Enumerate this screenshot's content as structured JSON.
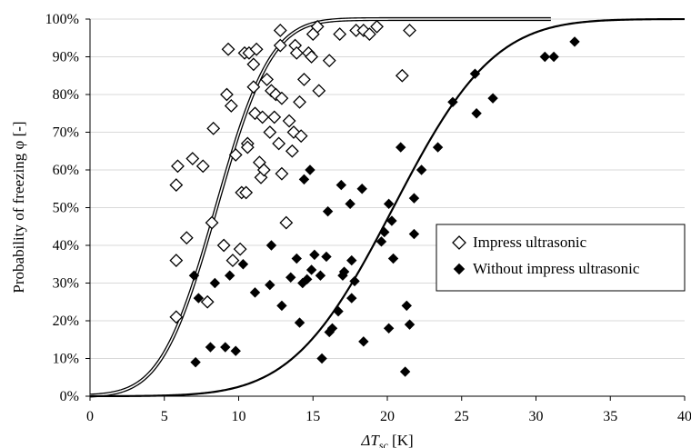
{
  "chart_data": {
    "type": "scatter",
    "title": "",
    "xlabel": "ΔT_sc [K]",
    "ylabel": "Probability of freezing  φ [-]",
    "xlim": [
      0,
      40
    ],
    "ylim": [
      0,
      100
    ],
    "x_ticks": [
      "0",
      "5",
      "10",
      "15",
      "20",
      "25",
      "30",
      "35",
      "40"
    ],
    "y_ticks": [
      "0%",
      "10%",
      "20%",
      "30%",
      "40%",
      "50%",
      "60%",
      "70%",
      "80%",
      "90%",
      "100%"
    ],
    "grid": "horizontal",
    "legend_position": "center-right",
    "series": [
      {
        "name": "Impress ultrasonic",
        "marker": "diamond-open",
        "points": [
          [
            5.8,
            21
          ],
          [
            5.8,
            36
          ],
          [
            5.8,
            56
          ],
          [
            5.9,
            61
          ],
          [
            6.5,
            42
          ],
          [
            6.9,
            63
          ],
          [
            7.6,
            61
          ],
          [
            7.9,
            25
          ],
          [
            8.2,
            46
          ],
          [
            8.3,
            71
          ],
          [
            9,
            40
          ],
          [
            9.2,
            80
          ],
          [
            9.3,
            92
          ],
          [
            9.5,
            77
          ],
          [
            9.6,
            36
          ],
          [
            9.8,
            64
          ],
          [
            10.1,
            39
          ],
          [
            10.2,
            54
          ],
          [
            10.4,
            91
          ],
          [
            10.5,
            54
          ],
          [
            10.6,
            67
          ],
          [
            10.6,
            66
          ],
          [
            10.7,
            91
          ],
          [
            11,
            88
          ],
          [
            11,
            82
          ],
          [
            11.1,
            75
          ],
          [
            11.2,
            92
          ],
          [
            11.4,
            62
          ],
          [
            11.5,
            58
          ],
          [
            11.6,
            74
          ],
          [
            11.7,
            60
          ],
          [
            11.9,
            84
          ],
          [
            12.1,
            70
          ],
          [
            12.2,
            81
          ],
          [
            12.4,
            74
          ],
          [
            12.5,
            80
          ],
          [
            12.7,
            67
          ],
          [
            12.8,
            93
          ],
          [
            12.8,
            97
          ],
          [
            12.9,
            79
          ],
          [
            12.9,
            59
          ],
          [
            13.2,
            46
          ],
          [
            13.4,
            73
          ],
          [
            13.6,
            65
          ],
          [
            13.7,
            70
          ],
          [
            13.8,
            93
          ],
          [
            13.9,
            91
          ],
          [
            14.1,
            78
          ],
          [
            14.2,
            69
          ],
          [
            14.4,
            84
          ],
          [
            14.7,
            91
          ],
          [
            14.9,
            90
          ],
          [
            15,
            96
          ],
          [
            15.3,
            98
          ],
          [
            15.4,
            81
          ],
          [
            16.1,
            89
          ],
          [
            16.8,
            96
          ],
          [
            17.9,
            97
          ],
          [
            18.4,
            97
          ],
          [
            18.8,
            96
          ],
          [
            19.3,
            98
          ],
          [
            21,
            85
          ],
          [
            21.5,
            97
          ]
        ]
      },
      {
        "name": "Without impress ultrasonic",
        "marker": "diamond-filled",
        "points": [
          [
            7,
            32
          ],
          [
            7.1,
            9
          ],
          [
            7.3,
            26
          ],
          [
            8.1,
            13
          ],
          [
            8.4,
            30
          ],
          [
            9.1,
            13
          ],
          [
            9.4,
            32
          ],
          [
            9.8,
            12
          ],
          [
            10.3,
            35
          ],
          [
            11.1,
            27.5
          ],
          [
            12.1,
            29.5
          ],
          [
            12.2,
            40
          ],
          [
            12.9,
            24
          ],
          [
            13.5,
            31.5
          ],
          [
            13.9,
            36.5
          ],
          [
            14.1,
            19.5
          ],
          [
            14.3,
            30
          ],
          [
            14.4,
            57.5
          ],
          [
            14.6,
            31
          ],
          [
            14.8,
            60
          ],
          [
            14.9,
            33.5
          ],
          [
            15.1,
            37.5
          ],
          [
            15.5,
            32
          ],
          [
            15.6,
            10
          ],
          [
            15.9,
            37
          ],
          [
            16,
            49
          ],
          [
            16.1,
            17
          ],
          [
            16.3,
            18
          ],
          [
            16.7,
            22.5
          ],
          [
            16.9,
            56
          ],
          [
            17,
            32
          ],
          [
            17.1,
            33
          ],
          [
            17.5,
            51
          ],
          [
            17.6,
            26
          ],
          [
            17.6,
            36
          ],
          [
            17.8,
            30.5
          ],
          [
            18.3,
            55
          ],
          [
            18.4,
            14.5
          ],
          [
            19.6,
            41
          ],
          [
            19.8,
            43.5
          ],
          [
            20.1,
            18
          ],
          [
            20.1,
            51
          ],
          [
            20.3,
            46.5
          ],
          [
            20.4,
            36.5
          ],
          [
            20.9,
            66
          ],
          [
            21.2,
            6.5
          ],
          [
            21.3,
            24
          ],
          [
            21.5,
            19
          ],
          [
            21.8,
            43
          ],
          [
            21.8,
            52.5
          ],
          [
            22.3,
            60
          ],
          [
            23.4,
            66
          ],
          [
            24.4,
            78
          ],
          [
            25.9,
            85.5
          ],
          [
            26,
            75
          ],
          [
            27.1,
            79
          ],
          [
            30.6,
            90
          ],
          [
            31.2,
            90
          ],
          [
            32.6,
            94
          ]
        ]
      }
    ],
    "fit_curves": [
      {
        "series": "Impress ultrasonic",
        "style": "double-line",
        "mu": 8.5,
        "sigma": 2.9
      },
      {
        "series": "Without impress ultrasonic",
        "style": "solid",
        "mu": 20.4,
        "sigma": 5.3
      }
    ]
  }
}
